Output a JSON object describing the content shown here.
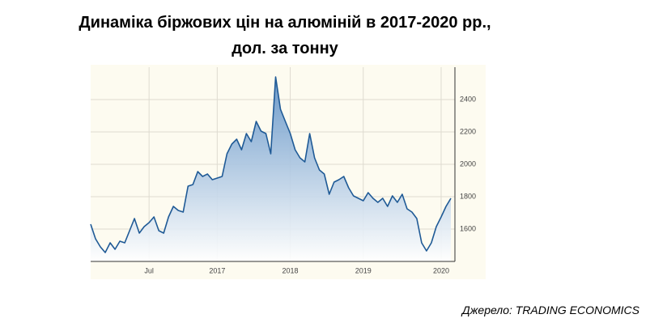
{
  "chart_data": {
    "type": "area",
    "title": "Динаміка  біржових  цін  на  алюміній  в  2017-2020  рр.,",
    "subtitle": "дол. за тонну",
    "source": "Джерело:  TRADING ECONOMICS",
    "color": "#1f5a96",
    "grid": true,
    "ylim": [
      1400,
      2600
    ],
    "yticks": [
      1600,
      1800,
      2000,
      2200,
      2400
    ],
    "categories": [
      null,
      null,
      null,
      null,
      null,
      null,
      null,
      null,
      null,
      null,
      null,
      null,
      "Jul",
      null,
      null,
      null,
      null,
      null,
      null,
      null,
      null,
      null,
      null,
      null,
      null,
      null,
      "2017",
      null,
      null,
      null,
      null,
      null,
      null,
      null,
      null,
      null,
      null,
      null,
      null,
      null,
      null,
      "2018",
      null,
      null,
      null,
      null,
      null,
      null,
      null,
      null,
      null,
      null,
      null,
      null,
      null,
      null,
      "2019",
      null,
      null,
      null,
      null,
      null,
      null,
      null,
      null,
      null,
      null,
      null,
      null,
      null,
      null,
      null,
      "2020",
      null,
      null
    ],
    "values": [
      1630,
      1540,
      1490,
      1455,
      1515,
      1475,
      1525,
      1515,
      1590,
      1665,
      1575,
      1615,
      1640,
      1675,
      1590,
      1575,
      1675,
      1740,
      1715,
      1705,
      1865,
      1875,
      1955,
      1925,
      1940,
      1905,
      1915,
      1925,
      2065,
      2125,
      2155,
      2090,
      2190,
      2140,
      2265,
      2205,
      2190,
      2065,
      2540,
      2340,
      2265,
      2190,
      2090,
      2040,
      2015,
      2190,
      2040,
      1965,
      1940,
      1815,
      1890,
      1905,
      1925,
      1855,
      1805,
      1790,
      1775,
      1825,
      1790,
      1765,
      1790,
      1740,
      1805,
      1765,
      1815,
      1725,
      1705,
      1665,
      1515,
      1465,
      1515,
      1615,
      1675,
      1740,
      1790
    ]
  }
}
